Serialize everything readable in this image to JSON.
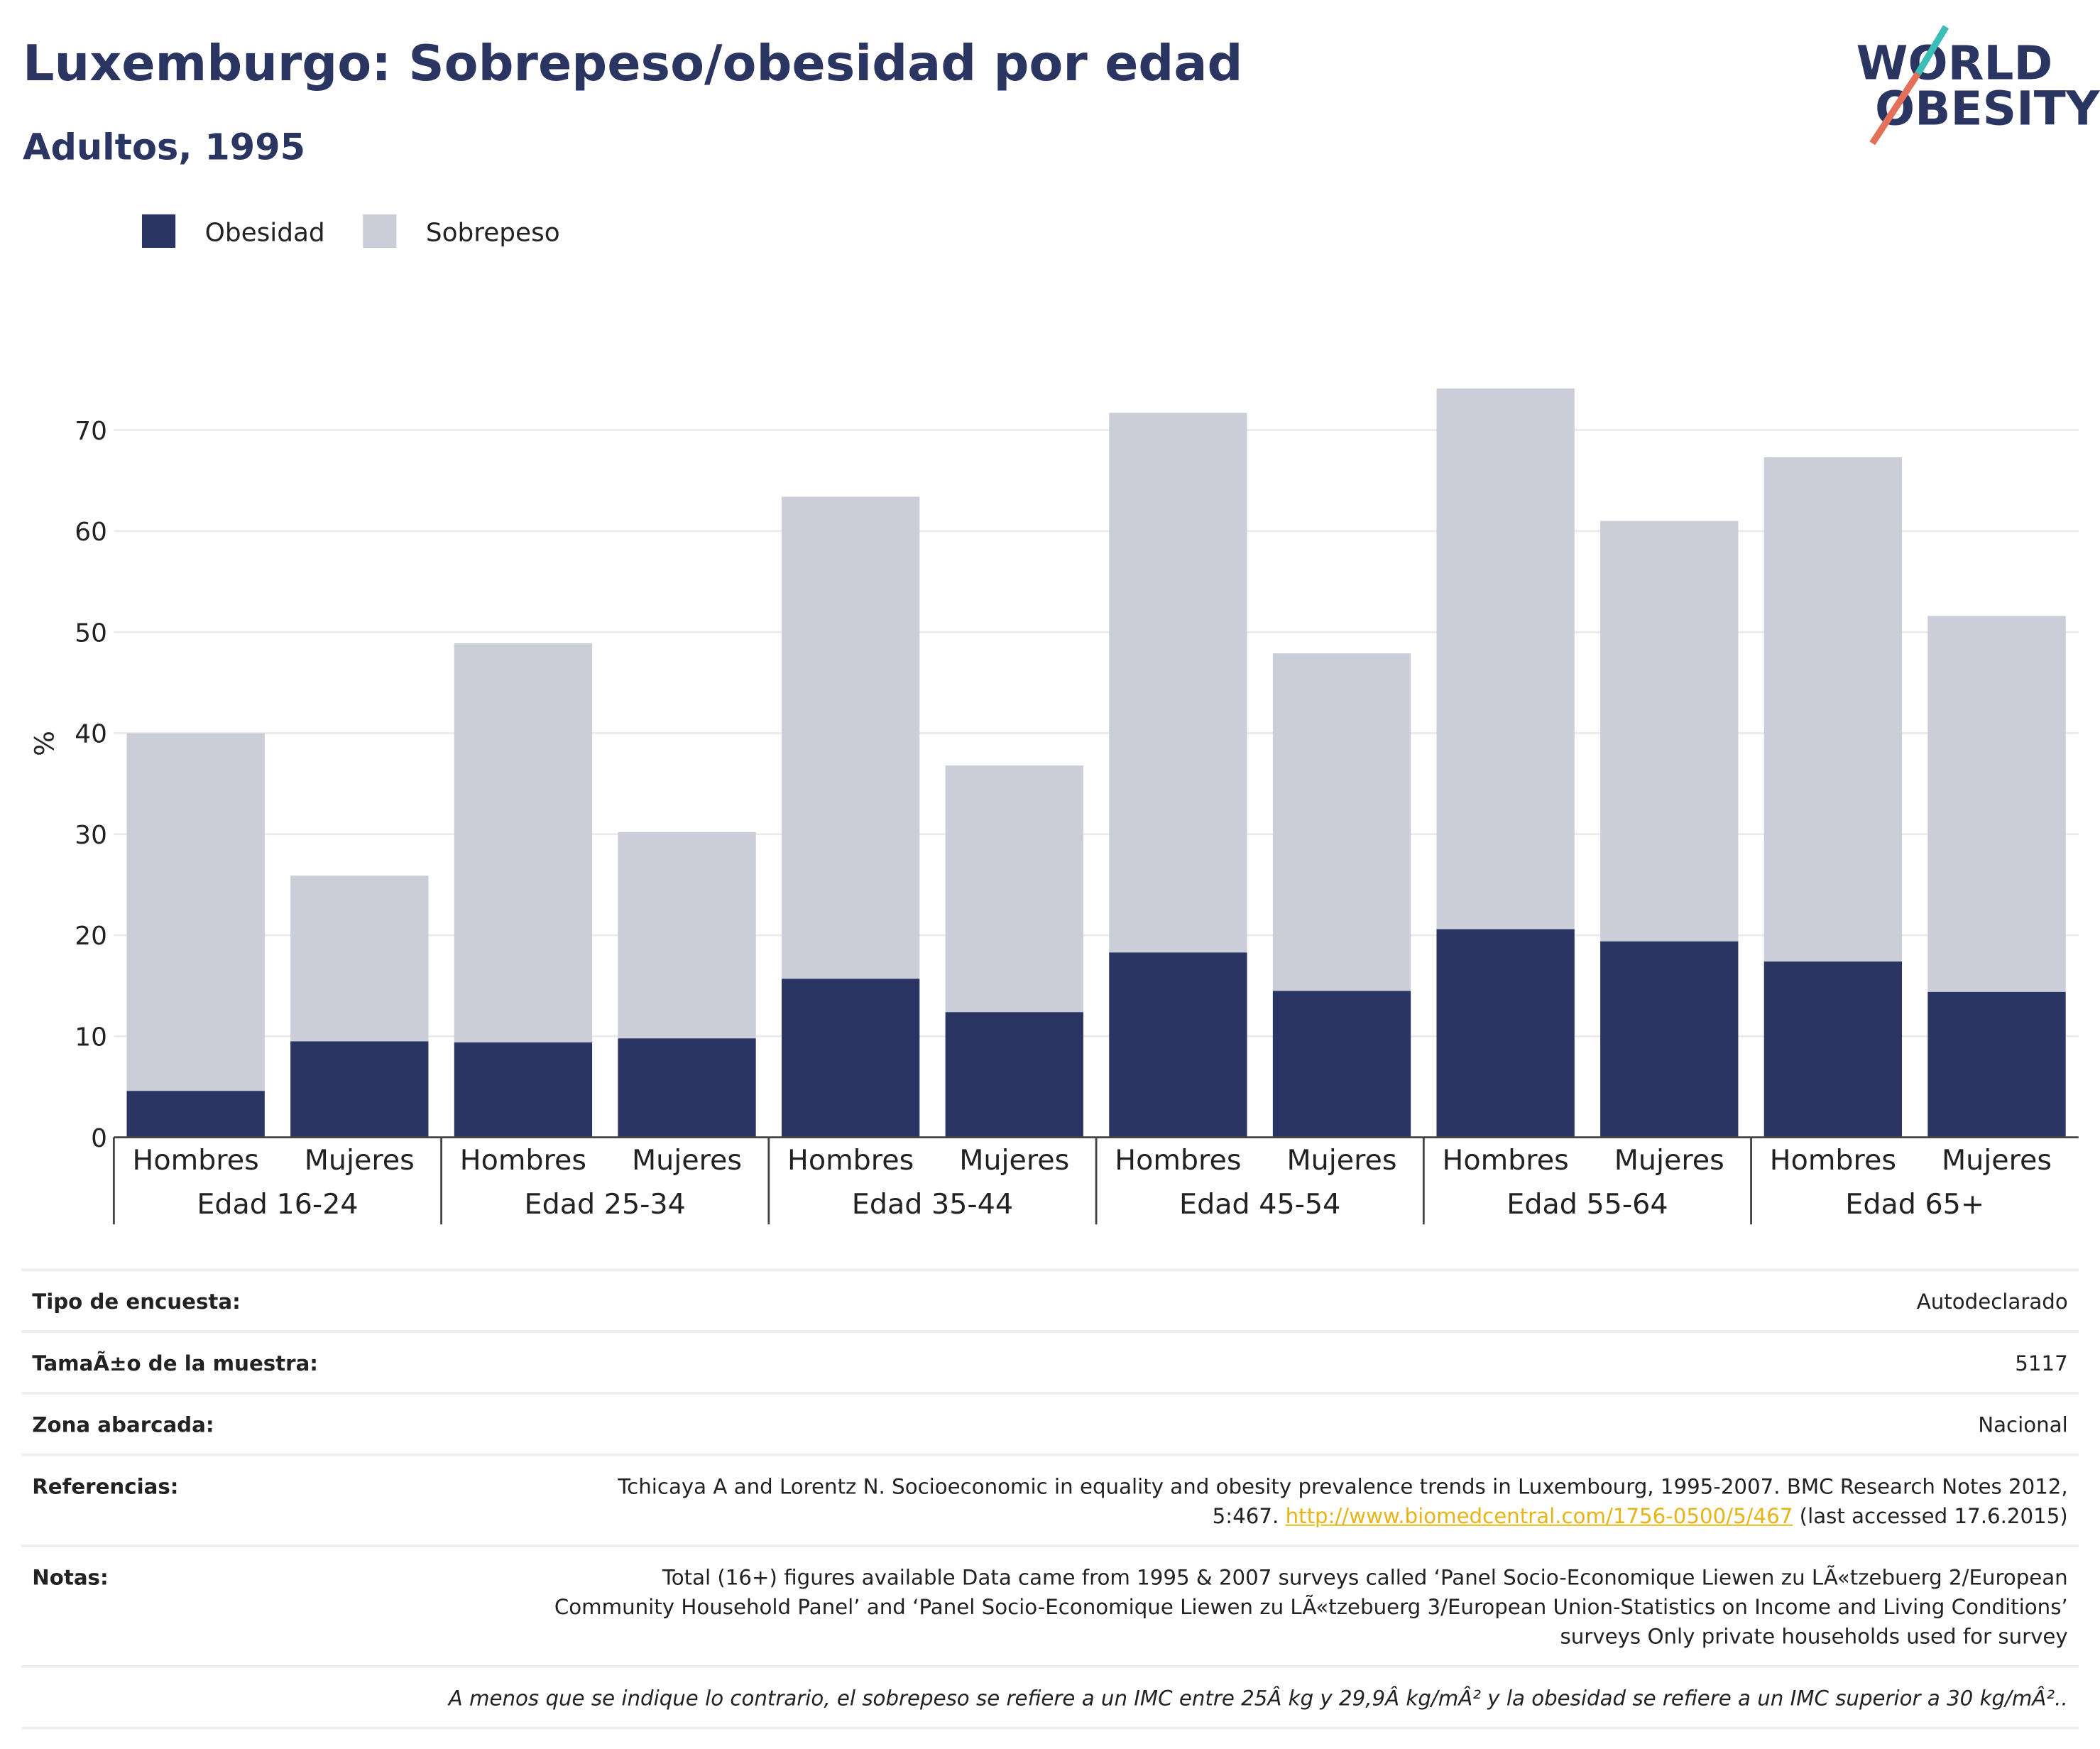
{
  "chart_data": {
    "type": "bar",
    "stacked": true,
    "title": "Luxemburgo: Sobrepeso/obesidad por edad",
    "subtitle": "Adultos, 1995",
    "y_label": "%",
    "categories": [
      "Hombres",
      "Mujeres",
      "Hombres",
      "Mujeres",
      "Hombres",
      "Mujeres",
      "Hombres",
      "Mujeres",
      "Hombres",
      "Mujeres",
      "Hombres",
      "Mujeres"
    ],
    "groups": [
      "Edad 16-24",
      "Edad 25-34",
      "Edad 35-44",
      "Edad 45-54",
      "Edad 55-64",
      "Edad 65+"
    ],
    "series": [
      {
        "name": "Obesidad",
        "color": "#2a3564",
        "values": [
          4.6,
          9.5,
          9.4,
          9.8,
          15.7,
          12.4,
          18.3,
          14.5,
          20.6,
          19.4,
          17.4,
          14.4
        ]
      },
      {
        "name": "Sobrepeso",
        "color": "#cbcdd8",
        "values": [
          35.4,
          16.4,
          39.5,
          20.4,
          47.7,
          24.4,
          53.4,
          33.4,
          53.5,
          41.6,
          49.9,
          37.2
        ]
      }
    ],
    "ylim": [
      0,
      75
    ],
    "yticks": [
      0,
      10,
      20,
      30,
      40,
      50,
      60,
      70
    ],
    "grid": true
  },
  "logo": {
    "line1": "WORLD",
    "line2": "OBESITY"
  },
  "details": {
    "survey_type": {
      "label": "Tipo de encuesta:",
      "value": "Autodeclarado"
    },
    "sample_size": {
      "label": "TamaÃ±o de la muestra:",
      "value": "5117"
    },
    "area": {
      "label": "Zona abarcada:",
      "value": "Nacional"
    },
    "references": {
      "label": "Referencias:",
      "text": "Tchicaya A and Lorentz N. Socioeconomic in equality and obesity prevalence trends in Luxembourg, 1995-2007. BMC Research Notes 2012, 5:467.",
      "link": "http://www.biomedcentral.com/1756-0500/5/467",
      "after": "(last accessed 17.6.2015)"
    },
    "notes": {
      "label": "Notas:",
      "value": "Total (16+) figures available Data came from 1995 & 2007 surveys called ‘Panel Socio-Economique Liewen zu LÃ«tzebuerg 2/European Community Household Panel’ and ‘Panel Socio-Economique Liewen zu LÃ«tzebuerg 3/European Union-Statistics on Income and Living Conditions’ surveys Only private households used for survey"
    },
    "footnote": "A menos que se indique lo contrario, el sobrepeso se refiere a un IMC entre 25Â kg y 29,9Â kg/mÂ² y la obesidad se refiere a un IMC superior a 30 kg/mÂ².."
  }
}
